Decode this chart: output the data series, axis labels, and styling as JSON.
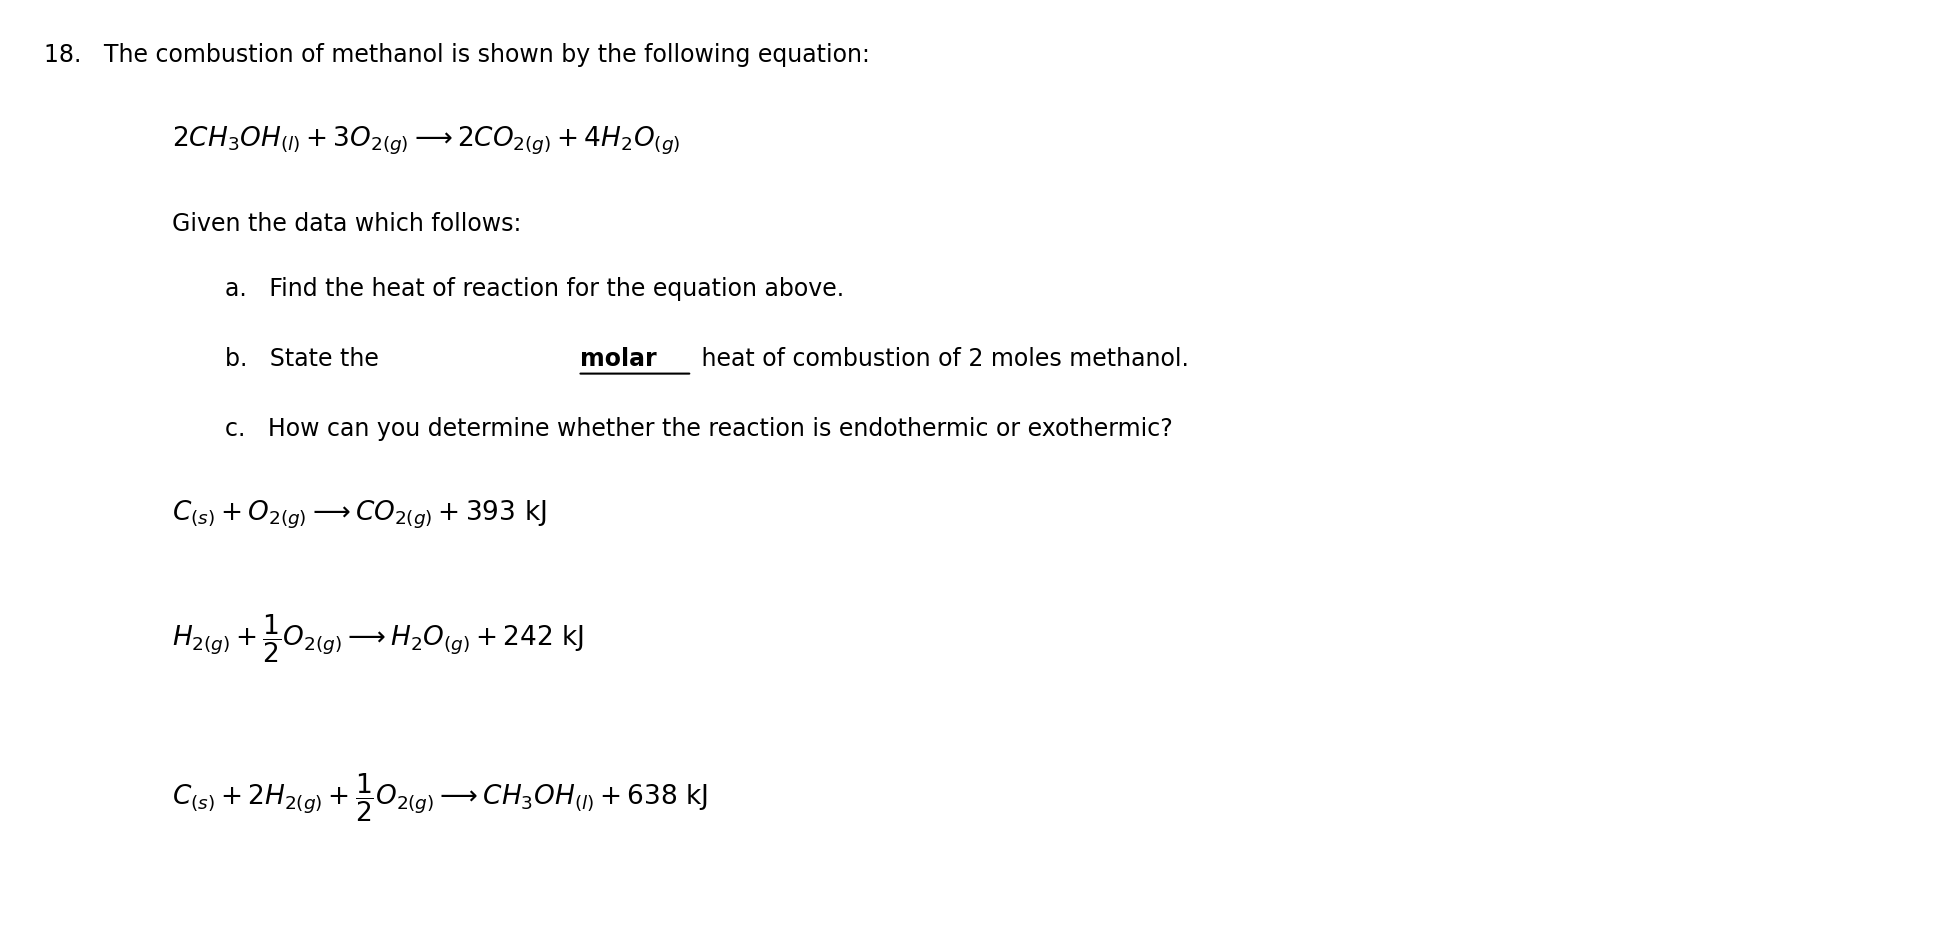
{
  "bg_color": "#ffffff",
  "text_color": "#000000",
  "figsize": [
    19.43,
    9.38
  ],
  "dpi": 100,
  "line1": "18.   The combustion of methanol is shown by the following equation:",
  "eq1": "$2CH_3OH_{(l)} + 3O_{2(g)} \\longrightarrow 2CO_{2(g)} + 4H_2O_{(g)}$",
  "given": "Given the data which follows:",
  "item_a": "a.   Find the heat of reaction for the equation above.",
  "item_b1": "b.   State the ",
  "item_b_molar": "molar",
  "item_b2": " heat of combustion of 2 moles methanol.",
  "item_c": "c.   How can you determine whether the reaction is endothermic or exothermic?",
  "eq2": "$C_{(s)} + O_{2(g)} \\longrightarrow CO_{2(g)} + 393\\ \\mathrm{kJ}$",
  "eq3": "$H_{2(g)} + \\dfrac{1}{2}O_{2(g)} \\longrightarrow H_2O_{(g)} + 242\\ \\mathrm{kJ}$",
  "eq4": "$C_{(s)} + 2H_{2(g)} + \\dfrac{1}{2}O_{2(g)} \\longrightarrow CH_3OH_{(l)} + 638\\ \\mathrm{kJ}$",
  "fs_main": 17,
  "fs_eq": 19
}
